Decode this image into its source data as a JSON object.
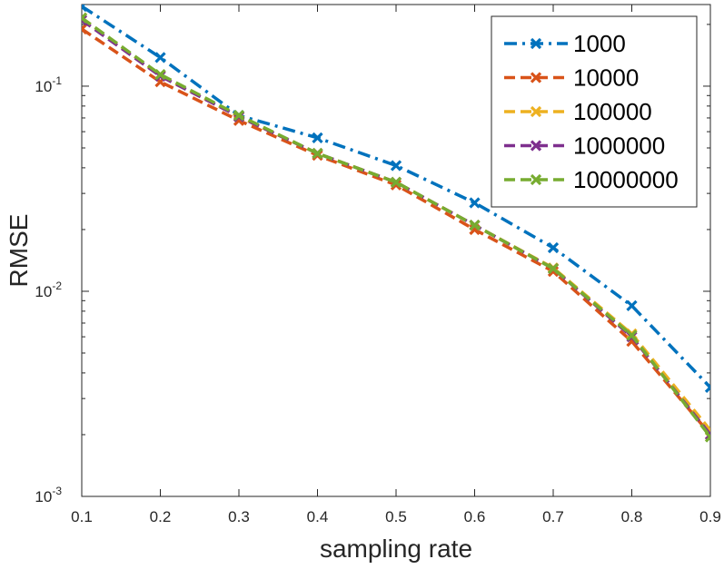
{
  "chart_data": {
    "type": "line",
    "title": "",
    "xlabel": "sampling rate",
    "ylabel": "RMSE",
    "yscale": "log",
    "xlim": [
      0.1,
      0.9
    ],
    "ylim": [
      0.001,
      0.25
    ],
    "x": [
      0.1,
      0.2,
      0.3,
      0.4,
      0.5,
      0.6,
      0.7,
      0.8,
      0.9
    ],
    "x_tick_labels": [
      "0.1",
      "0.2",
      "0.3",
      "0.4",
      "0.5",
      "0.6",
      "0.7",
      "0.8",
      "0.9"
    ],
    "y_ticks": [
      {
        "value": 0.1,
        "base": "10",
        "exp": "-1"
      },
      {
        "value": 0.01,
        "base": "10",
        "exp": "-2"
      },
      {
        "value": 0.001,
        "base": "10",
        "exp": "-3"
      }
    ],
    "legend_position": "top-right",
    "series": [
      {
        "name": "1000",
        "color": "#0072BD",
        "style": "dashdot",
        "marker": "x",
        "values": [
          0.245,
          0.138,
          0.072,
          0.056,
          0.041,
          0.027,
          0.0163,
          0.0085,
          0.0034
        ]
      },
      {
        "name": "10000",
        "color": "#D95319",
        "style": "dashed",
        "marker": "x",
        "values": [
          0.19,
          0.105,
          0.068,
          0.046,
          0.033,
          0.02,
          0.0125,
          0.0057,
          0.002
        ]
      },
      {
        "name": "100000",
        "color": "#EDB120",
        "style": "dashed",
        "marker": "x",
        "values": [
          0.215,
          0.113,
          0.071,
          0.047,
          0.034,
          0.021,
          0.013,
          0.0062,
          0.0021
        ]
      },
      {
        "name": "1000000",
        "color": "#7E2F8E",
        "style": "dashed",
        "marker": "x",
        "values": [
          0.21,
          0.112,
          0.071,
          0.047,
          0.034,
          0.021,
          0.0129,
          0.006,
          0.002
        ]
      },
      {
        "name": "10000000",
        "color": "#77AC30",
        "style": "dashed",
        "marker": "x",
        "values": [
          0.215,
          0.114,
          0.072,
          0.047,
          0.034,
          0.021,
          0.0129,
          0.0061,
          0.00195
        ]
      }
    ]
  }
}
